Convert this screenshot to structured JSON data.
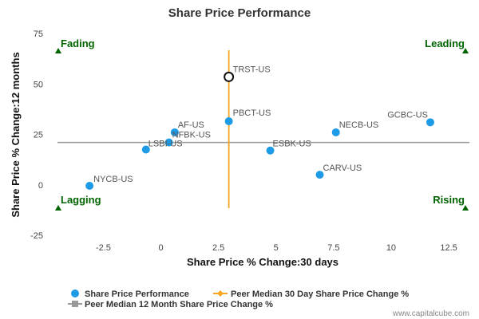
{
  "chart_data": {
    "type": "scatter",
    "title": "Share Price Performance",
    "xlabel": "Share Price % Change:30 days",
    "ylabel": "Share Price % Change:12 months",
    "xlim": [
      -4.7,
      13.4
    ],
    "ylim": [
      -25,
      75
    ],
    "x_ticks": [
      "-2.5",
      "0",
      "2.5",
      "5",
      "7.5",
      "10",
      "12.5"
    ],
    "x_tick_values": [
      -2.5,
      0,
      2.5,
      5,
      7.5,
      10,
      12.5
    ],
    "y_ticks": [
      "-25",
      "0",
      "25",
      "50",
      "75"
    ],
    "y_tick_values": [
      -25,
      0,
      25,
      50,
      75
    ],
    "grid": false,
    "points": [
      {
        "label": "TRST-US",
        "x": 2.95,
        "y": 53.5,
        "highlight": true
      },
      {
        "label": "PBCT-US",
        "x": 2.95,
        "y": 31.5
      },
      {
        "label": "AF-US",
        "x": 0.6,
        "y": 26
      },
      {
        "label": "NFBK-US",
        "x": 0.35,
        "y": 21
      },
      {
        "label": "LSBI-US",
        "x": -0.65,
        "y": 17.5
      },
      {
        "label": "NECB-US",
        "x": 7.6,
        "y": 26
      },
      {
        "label": "GCBC-US",
        "x": 11.7,
        "y": 31
      },
      {
        "label": "ESBK-US",
        "x": 4.75,
        "y": 17
      },
      {
        "label": "CARV-US",
        "x": 6.9,
        "y": 5
      },
      {
        "label": "NYCB-US",
        "x": -3.1,
        "y": -0.5
      }
    ],
    "peer_median_30d": 2.95,
    "peer_median_12m": 21,
    "quadrants": {
      "top_left": "Fading",
      "top_right": "Leading",
      "bottom_left": "Lagging",
      "bottom_right": "Rising"
    },
    "legend": [
      {
        "name": "Share Price Performance",
        "color": "#1e9be6",
        "marker": "circle"
      },
      {
        "name": "Peer Median 30 Day Share Price Change %",
        "color": "#f5a623",
        "marker": "diamond-line"
      },
      {
        "name": "Peer Median 12 Month Share Price Change %",
        "color": "#999999",
        "marker": "square-line"
      }
    ],
    "legend_position": "bottom-left",
    "colors": {
      "point": "#1e9be6",
      "vertical_median": "#f5a623",
      "horizontal_median": "#999999",
      "quadrant_marker": "#006400"
    }
  },
  "credit": "www.capitalcube.com"
}
